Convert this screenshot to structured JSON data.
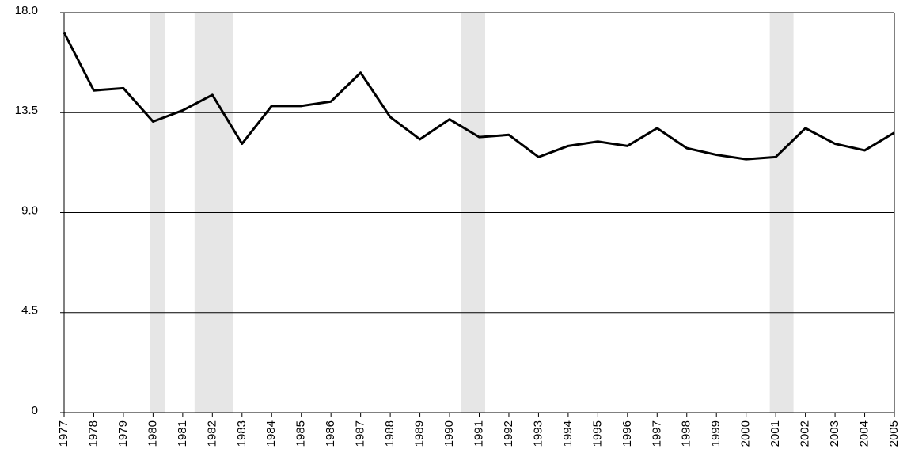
{
  "chart_data": {
    "type": "line",
    "x": [
      1977,
      1978,
      1979,
      1980,
      1981,
      1982,
      1983,
      1984,
      1985,
      1986,
      1987,
      1988,
      1989,
      1990,
      1991,
      1992,
      1993,
      1994,
      1995,
      1996,
      1997,
      1998,
      1999,
      2000,
      2001,
      2002,
      2003,
      2004,
      2005
    ],
    "values": [
      17.1,
      14.5,
      14.6,
      13.1,
      13.6,
      14.3,
      12.1,
      13.8,
      13.8,
      14.0,
      15.3,
      13.3,
      12.3,
      13.2,
      12.4,
      12.5,
      11.5,
      12.0,
      12.2,
      12.0,
      12.8,
      11.9,
      11.6,
      11.4,
      11.5,
      12.8,
      12.1,
      11.8,
      12.6
    ],
    "color": "#000000",
    "shaded_periods": [
      [
        1979.9,
        1980.4
      ],
      [
        1981.4,
        1982.7
      ],
      [
        1990.4,
        1991.2
      ],
      [
        2000.8,
        2001.6
      ]
    ],
    "shade_color": "#e6e6e6",
    "xlim": [
      1977,
      2005
    ],
    "xticks": [
      1977,
      1978,
      1979,
      1980,
      1981,
      1982,
      1983,
      1984,
      1985,
      1986,
      1987,
      1988,
      1989,
      1990,
      1991,
      1992,
      1993,
      1994,
      1995,
      1996,
      1997,
      1998,
      1999,
      2000,
      2001,
      2002,
      2003,
      2004,
      2005
    ],
    "ylim": [
      0,
      18
    ],
    "yticks": [
      0,
      4.5,
      {
        "value": 9,
        "label": "9.0"
      },
      13.5,
      {
        "value": 18,
        "label": "18.0"
      }
    ],
    "grid": true
  }
}
